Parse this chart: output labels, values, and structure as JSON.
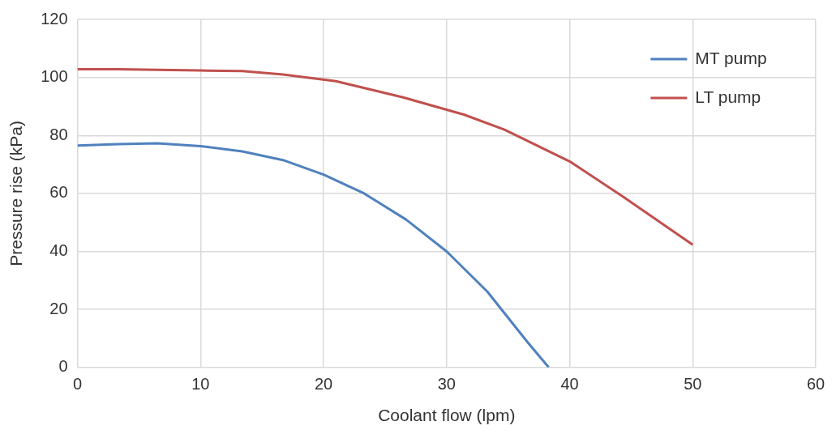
{
  "chart_data": {
    "type": "line",
    "xlabel": "Coolant flow (lpm)",
    "ylabel": "Pressure rise (kPa)",
    "xlim": [
      0,
      60
    ],
    "xticks": [
      0,
      10,
      20,
      30,
      40,
      50,
      60
    ],
    "ylim": [
      0,
      120
    ],
    "yticks": [
      0,
      20,
      40,
      60,
      80,
      100,
      120
    ],
    "grid": true,
    "legend": "top right",
    "marker": "none",
    "line_style": "solid",
    "series": [
      {
        "name": "MT pump",
        "color": "#4f81bd",
        "x": [
          0,
          3.3,
          6.5,
          10,
          13.4,
          16.7,
          20,
          23.3,
          26.7,
          30,
          33.3,
          36.6,
          38.3
        ],
        "values": [
          76.5,
          77,
          77.3,
          76.3,
          74.5,
          71.5,
          66.5,
          60,
          51,
          40,
          26.2,
          8.6,
          0
        ]
      },
      {
        "name": "LT pump",
        "color": "#c0504d",
        "x": [
          0,
          3.3,
          6.5,
          10,
          13.4,
          16.7,
          21,
          26.4,
          31.4,
          34.7,
          40.1,
          44.4,
          50
        ],
        "values": [
          102.8,
          102.8,
          102.6,
          102.4,
          102.2,
          101,
          98.7,
          93.2,
          87.2,
          82,
          70.8,
          58.7,
          42.3
        ]
      }
    ]
  }
}
